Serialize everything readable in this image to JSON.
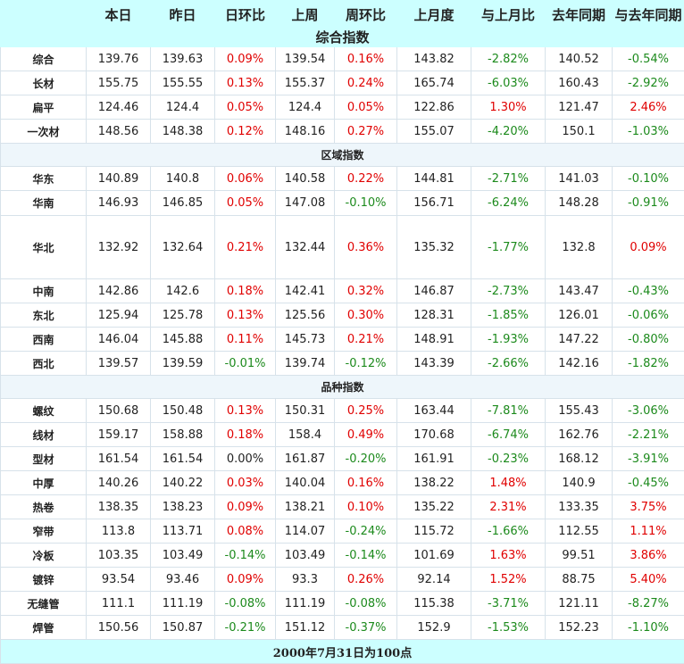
{
  "colors": {
    "header_bg": "#ccffff",
    "section_bg": "#eef6fb",
    "up": "#e00000",
    "down": "#1c8a1c",
    "border": "#d7e2ea"
  },
  "headers": [
    "",
    "本日",
    "昨日",
    "日环比",
    "上周",
    "周环比",
    "上月度",
    "与上月比",
    "去年同期",
    "与去年同期"
  ],
  "title": "综合指数",
  "sections": [
    {
      "label": "",
      "rows": [
        {
          "name": "综合",
          "h": 27,
          "v": [
            "139.76",
            "139.63",
            "0.09%",
            "139.54",
            "0.16%",
            "143.82",
            "-2.82%",
            "140.52",
            "-0.54%"
          ]
        },
        {
          "name": "长材",
          "h": 27,
          "v": [
            "155.75",
            "155.55",
            "0.13%",
            "155.37",
            "0.24%",
            "165.74",
            "-6.03%",
            "160.43",
            "-2.92%"
          ]
        },
        {
          "name": "扁平",
          "h": 27,
          "v": [
            "124.46",
            "124.4",
            "0.05%",
            "124.4",
            "0.05%",
            "122.86",
            "1.30%",
            "121.47",
            "2.46%"
          ]
        },
        {
          "name": "一次材",
          "h": 27,
          "v": [
            "148.56",
            "148.38",
            "0.12%",
            "148.16",
            "0.27%",
            "155.07",
            "-4.20%",
            "150.1",
            "-1.03%"
          ]
        }
      ]
    },
    {
      "label": "区域指数",
      "rows": [
        {
          "name": "华东",
          "h": 27,
          "v": [
            "140.89",
            "140.8",
            "0.06%",
            "140.58",
            "0.22%",
            "144.81",
            "-2.71%",
            "141.03",
            "-0.10%"
          ]
        },
        {
          "name": "华南",
          "h": 28,
          "v": [
            "146.93",
            "146.85",
            "0.05%",
            "147.08",
            "-0.10%",
            "156.71",
            "-6.24%",
            "148.28",
            "-0.91%"
          ]
        },
        {
          "name": "华北",
          "h": 71,
          "v": [
            "132.92",
            "132.64",
            "0.21%",
            "132.44",
            "0.36%",
            "135.32",
            "-1.77%",
            "132.8",
            "0.09%"
          ]
        },
        {
          "name": "中南",
          "h": 27,
          "v": [
            "142.86",
            "142.6",
            "0.18%",
            "142.41",
            "0.32%",
            "146.87",
            "-2.73%",
            "143.47",
            "-0.43%"
          ]
        },
        {
          "name": "东北",
          "h": 27,
          "v": [
            "125.94",
            "125.78",
            "0.13%",
            "125.56",
            "0.30%",
            "128.31",
            "-1.85%",
            "126.01",
            "-0.06%"
          ]
        },
        {
          "name": "西南",
          "h": 27,
          "v": [
            "146.04",
            "145.88",
            "0.11%",
            "145.73",
            "0.21%",
            "148.91",
            "-1.93%",
            "147.22",
            "-0.80%"
          ]
        },
        {
          "name": "西北",
          "h": 27,
          "v": [
            "139.57",
            "139.59",
            "-0.01%",
            "139.74",
            "-0.12%",
            "143.39",
            "-2.66%",
            "142.16",
            "-1.82%"
          ]
        }
      ]
    },
    {
      "label": "品种指数",
      "rows": [
        {
          "name": "螺纹",
          "h": 27,
          "v": [
            "150.68",
            "150.48",
            "0.13%",
            "150.31",
            "0.25%",
            "163.44",
            "-7.81%",
            "155.43",
            "-3.06%"
          ]
        },
        {
          "name": "线材",
          "h": 27,
          "v": [
            "159.17",
            "158.88",
            "0.18%",
            "158.4",
            "0.49%",
            "170.68",
            "-6.74%",
            "162.76",
            "-2.21%"
          ]
        },
        {
          "name": "型材",
          "h": 27,
          "v": [
            "161.54",
            "161.54",
            "0.00%",
            "161.87",
            "-0.20%",
            "161.91",
            "-0.23%",
            "168.12",
            "-3.91%"
          ]
        },
        {
          "name": "中厚",
          "h": 27,
          "v": [
            "140.26",
            "140.22",
            "0.03%",
            "140.04",
            "0.16%",
            "138.22",
            "1.48%",
            "140.9",
            "-0.45%"
          ]
        },
        {
          "name": "热卷",
          "h": 27,
          "v": [
            "138.35",
            "138.23",
            "0.09%",
            "138.21",
            "0.10%",
            "135.22",
            "2.31%",
            "133.35",
            "3.75%"
          ]
        },
        {
          "name": "窄带",
          "h": 27,
          "v": [
            "113.8",
            "113.71",
            "0.08%",
            "114.07",
            "-0.24%",
            "115.72",
            "-1.66%",
            "112.55",
            "1.11%"
          ]
        },
        {
          "name": "冷板",
          "h": 27,
          "v": [
            "103.35",
            "103.49",
            "-0.14%",
            "103.49",
            "-0.14%",
            "101.69",
            "1.63%",
            "99.51",
            "3.86%"
          ]
        },
        {
          "name": "镀锌",
          "h": 27,
          "v": [
            "93.54",
            "93.46",
            "0.09%",
            "93.3",
            "0.26%",
            "92.14",
            "1.52%",
            "88.75",
            "5.40%"
          ]
        },
        {
          "name": "无缝管",
          "h": 27,
          "v": [
            "111.1",
            "111.19",
            "-0.08%",
            "111.19",
            "-0.08%",
            "115.38",
            "-3.71%",
            "121.11",
            "-8.27%"
          ]
        },
        {
          "name": "焊管",
          "h": 27,
          "v": [
            "150.56",
            "150.87",
            "-0.21%",
            "151.12",
            "-0.37%",
            "152.9",
            "-1.53%",
            "152.23",
            "-1.10%"
          ]
        }
      ]
    }
  ],
  "footer": "2000年7月31日为100点"
}
